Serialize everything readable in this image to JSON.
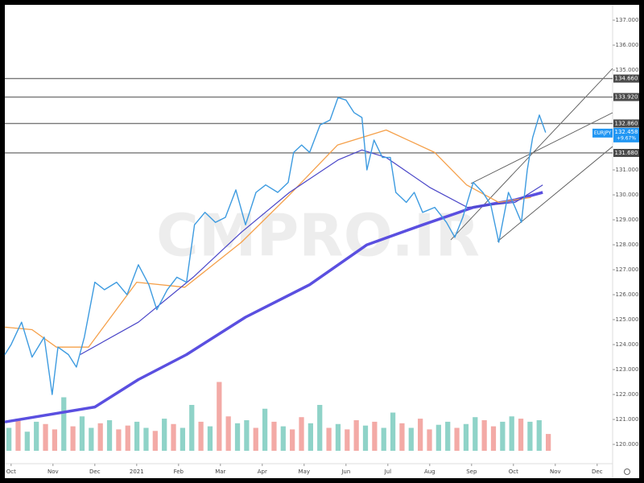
{
  "chart_data": {
    "type": "line",
    "watermark": "CMPRO.IR",
    "symbol": "EURJPY",
    "last": {
      "value": 132.458,
      "label": "132.458"
    },
    "change": "+9.67%",
    "xlim": [
      -0.15,
      14.35
    ],
    "ylim": [
      119.26,
      137.55
    ],
    "xticks": [
      {
        "value": 0,
        "label": "Oct"
      },
      {
        "value": 1,
        "label": "Nov"
      },
      {
        "value": 2,
        "label": "Dec"
      },
      {
        "value": 3,
        "label": "2021"
      },
      {
        "value": 4,
        "label": "Feb"
      },
      {
        "value": 5,
        "label": "Mar"
      },
      {
        "value": 6,
        "label": "Apr"
      },
      {
        "value": 7,
        "label": "May"
      },
      {
        "value": 8,
        "label": "Jun"
      },
      {
        "value": 9,
        "label": "Jul"
      },
      {
        "value": 10,
        "label": "Aug"
      },
      {
        "value": 11,
        "label": "Sep"
      },
      {
        "value": 12,
        "label": "Oct"
      },
      {
        "value": 13,
        "label": "Nov"
      },
      {
        "value": 14,
        "label": "Dec"
      }
    ],
    "yticks": [
      {
        "value": 137,
        "label": "137.000"
      },
      {
        "value": 136,
        "label": "136.000"
      },
      {
        "value": 135,
        "label": "135.000"
      },
      {
        "value": 131,
        "label": "131.000"
      },
      {
        "value": 130,
        "label": "130.000"
      },
      {
        "value": 129,
        "label": "129.000"
      },
      {
        "value": 128,
        "label": "128.000"
      },
      {
        "value": 127,
        "label": "127.000"
      },
      {
        "value": 126,
        "label": "126.000"
      },
      {
        "value": 125,
        "label": "125.000"
      },
      {
        "value": 124,
        "label": "124.000"
      },
      {
        "value": 123,
        "label": "123.000"
      },
      {
        "value": 122,
        "label": "122.000"
      },
      {
        "value": 121,
        "label": "121.000"
      },
      {
        "value": 120,
        "label": "120.000"
      }
    ],
    "levels": [
      {
        "value": 134.66,
        "label": "134.660"
      },
      {
        "value": 133.92,
        "label": "133.920"
      },
      {
        "value": 132.86,
        "label": "132.860"
      },
      {
        "value": 131.68,
        "label": "131.680"
      }
    ],
    "level_color": "#777777",
    "series": [
      {
        "color": "#5a4fe0",
        "width": 3.5,
        "x": [
          -0.15,
          2,
          3.04,
          4.19,
          5.6,
          7.13,
          8.5,
          9.83,
          11.04,
          12.04,
          12.7
        ],
        "values": [
          120.9,
          121.5,
          122.6,
          123.6,
          125.1,
          126.4,
          128.0,
          128.8,
          129.5,
          129.8,
          130.1
        ]
      },
      {
        "color": "#f5a04a",
        "width": 1.3,
        "x": [
          -0.15,
          0.5,
          1.08,
          1.85,
          3.0,
          4.15,
          5.5,
          6.65,
          7.8,
          8.96,
          10.12,
          10.88,
          11.65,
          12.42
        ],
        "values": [
          124.7,
          124.6,
          123.9,
          123.9,
          126.5,
          126.3,
          128.1,
          130.0,
          132.0,
          132.6,
          131.7,
          130.4,
          129.7,
          129.9
        ]
      },
      {
        "color": "#4a46c8",
        "width": 1.2,
        "x": [
          1.65,
          3.04,
          4.35,
          5.5,
          6.65,
          7.81,
          8.38,
          8.96,
          10.0,
          10.9,
          12.04,
          12.7
        ],
        "values": [
          123.6,
          124.9,
          126.7,
          128.5,
          130.1,
          131.4,
          131.8,
          131.5,
          130.3,
          129.5,
          129.7,
          130.4
        ]
      },
      {
        "color": "#3d9be0",
        "width": 1.4,
        "x": [
          -0.15,
          0,
          0.25,
          0.5,
          0.79,
          0.98,
          1.12,
          1.37,
          1.56,
          1.75,
          2,
          2.23,
          2.52,
          2.77,
          3.04,
          3.29,
          3.48,
          3.73,
          3.96,
          4.19,
          4.38,
          4.63,
          4.88,
          5.12,
          5.37,
          5.6,
          5.85,
          6.08,
          6.37,
          6.62,
          6.75,
          6.94,
          7.13,
          7.38,
          7.62,
          7.81,
          8,
          8.19,
          8.38,
          8.5,
          8.67,
          8.87,
          9.06,
          9.19,
          9.44,
          9.63,
          9.83,
          10.12,
          10.4,
          10.6,
          10.79,
          11.04,
          11.27,
          11.46,
          11.65,
          11.88,
          12.04,
          12.19,
          12.33,
          12.46,
          12.62,
          12.77
        ],
        "values": [
          123.6,
          124.0,
          124.9,
          123.5,
          124.3,
          122.0,
          123.9,
          123.6,
          123.1,
          124.3,
          126.5,
          126.2,
          126.5,
          126.0,
          127.2,
          126.4,
          125.4,
          126.2,
          126.7,
          126.5,
          128.8,
          129.3,
          128.9,
          129.1,
          130.2,
          128.8,
          130.1,
          130.4,
          130.1,
          130.5,
          131.7,
          132.0,
          131.7,
          132.8,
          133.0,
          133.9,
          133.8,
          133.3,
          133.1,
          131.0,
          132.2,
          131.5,
          131.5,
          130.1,
          129.7,
          130.1,
          129.3,
          129.5,
          128.9,
          128.3,
          129.1,
          130.5,
          130.1,
          129.6,
          128.1,
          130.1,
          129.5,
          128.9,
          131.0,
          132.3,
          133.2,
          132.5
        ]
      }
    ],
    "volume": {
      "ylim": [
        0,
        100
      ],
      "up_color": "#8fd3c8",
      "down_color": "#f3aaa6",
      "values": [
        30,
        42,
        25,
        38,
        35,
        28,
        70,
        32,
        45,
        30,
        36,
        40,
        28,
        33,
        38,
        30,
        26,
        42,
        35,
        30,
        60,
        38,
        32,
        90,
        45,
        36,
        40,
        30,
        55,
        38,
        32,
        28,
        44,
        36,
        60,
        30,
        35,
        28,
        40,
        33,
        38,
        30,
        50,
        36,
        30,
        42,
        28,
        34,
        38,
        30,
        35,
        44,
        40,
        32,
        38,
        45,
        42,
        38,
        40,
        22
      ],
      "up": [
        1,
        0,
        1,
        1,
        0,
        0,
        1,
        0,
        1,
        1,
        0,
        1,
        0,
        0,
        1,
        1,
        0,
        1,
        0,
        1,
        1,
        0,
        1,
        0,
        0,
        1,
        1,
        0,
        1,
        0,
        1,
        0,
        0,
        1,
        1,
        0,
        1,
        0,
        0,
        1,
        0,
        1,
        1,
        0,
        1,
        0,
        0,
        1,
        1,
        0,
        1,
        1,
        0,
        0,
        1,
        1,
        0,
        1,
        1,
        0
      ]
    }
  }
}
